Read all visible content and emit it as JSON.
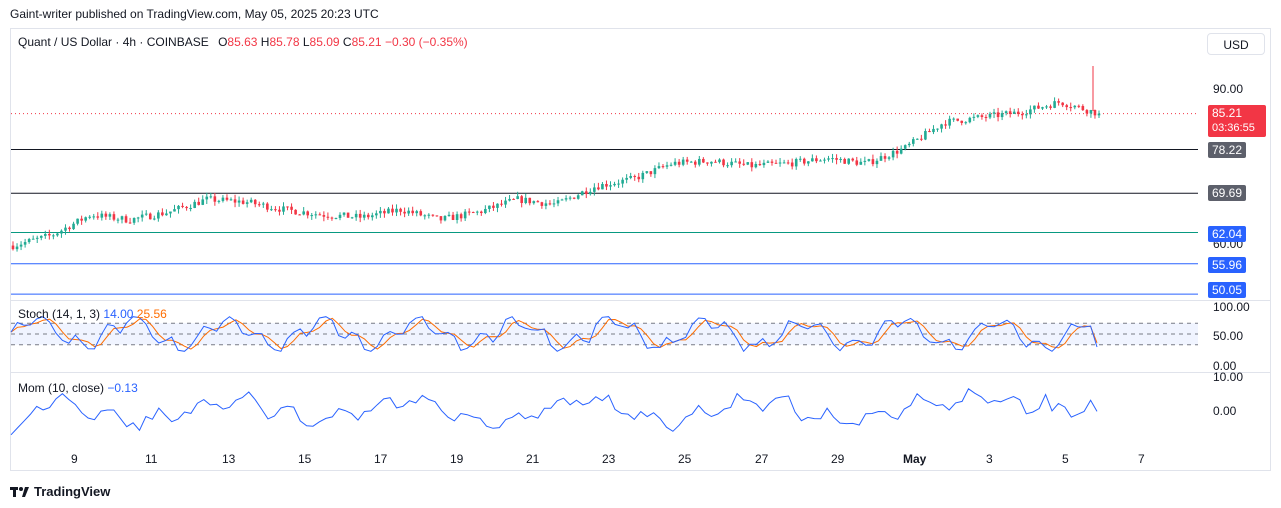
{
  "publisher_line": "Gaint-writer published on TradingView.com, May 05, 2025 20:23 UTC",
  "legend": {
    "symbol": "Quant / US Dollar · 4h · COINBASE",
    "o_label": "O",
    "o": "85.63",
    "h_label": "H",
    "h": "85.78",
    "l_label": "L",
    "l": "85.09",
    "c_label": "C",
    "c": "85.21",
    "change": "−0.30 (−0.35%)"
  },
  "currency_button": "USD",
  "price_axis": {
    "ticks": [
      "90.00",
      "60.00"
    ],
    "current_price": "85.21",
    "countdown": "03:36:55"
  },
  "horizontal_levels": [
    {
      "value": 78.22,
      "label": "78.22",
      "color": "#131722"
    },
    {
      "value": 69.69,
      "label": "69.69",
      "color": "#131722"
    },
    {
      "value": 62.04,
      "label": "62.04",
      "color": "#089981"
    },
    {
      "value": 55.96,
      "label": "55.96",
      "color": "#2962ff"
    },
    {
      "value": 50.05,
      "label": "50.05",
      "color": "#2962ff"
    }
  ],
  "stoch": {
    "name": "Stoch (14, 1, 3)",
    "k": "14.00",
    "d": "25.56",
    "ticks": [
      "100.00",
      "50.00",
      "0.00"
    ],
    "k_color": "#2962ff",
    "d_color": "#ff6d00"
  },
  "mom": {
    "name": "Mom (10, close)",
    "value": "−0.13",
    "ticks": [
      "10.00",
      "0.00"
    ],
    "color": "#2962ff"
  },
  "time_axis": [
    "9",
    "11",
    "13",
    "15",
    "17",
    "19",
    "21",
    "23",
    "25",
    "27",
    "29",
    "May",
    "3",
    "5",
    "7"
  ],
  "branding": "TradingView",
  "colors": {
    "up": "#089981",
    "down": "#f23645",
    "up_candle": "#22ab94"
  },
  "chart_data": {
    "type": "candlestick",
    "title": "Quant / US Dollar · 4h · COINBASE",
    "timeframe": "4h",
    "x_labels": [
      "9",
      "11",
      "13",
      "15",
      "17",
      "19",
      "21",
      "23",
      "25",
      "27",
      "29",
      "May",
      "3",
      "5",
      "7"
    ],
    "close_path_approx": [
      {
        "x": "8",
        "close": 59.5
      },
      {
        "x": "9",
        "close": 61.5
      },
      {
        "x": "10",
        "close": 65.5
      },
      {
        "x": "11",
        "close": 64.5
      },
      {
        "x": "12",
        "close": 66.0
      },
      {
        "x": "13",
        "close": 68.5
      },
      {
        "x": "14",
        "close": 68.0
      },
      {
        "x": "15",
        "close": 66.5
      },
      {
        "x": "16",
        "close": 65.5
      },
      {
        "x": "17",
        "close": 65.0
      },
      {
        "x": "18",
        "close": 66.5
      },
      {
        "x": "19",
        "close": 64.5
      },
      {
        "x": "20",
        "close": 66.0
      },
      {
        "x": "21",
        "close": 68.5
      },
      {
        "x": "22",
        "close": 67.5
      },
      {
        "x": "23",
        "close": 71.0
      },
      {
        "x": "24",
        "close": 72.5
      },
      {
        "x": "25",
        "close": 75.5
      },
      {
        "x": "26",
        "close": 76.0
      },
      {
        "x": "27",
        "close": 75.0
      },
      {
        "x": "28",
        "close": 75.5
      },
      {
        "x": "29",
        "close": 76.5
      },
      {
        "x": "30",
        "close": 75.5
      },
      {
        "x": "May",
        "close": 78.5
      },
      {
        "x": "2",
        "close": 83.5
      },
      {
        "x": "3",
        "close": 84.5
      },
      {
        "x": "4",
        "close": 85.5
      },
      {
        "x": "5",
        "close": 87.5
      },
      {
        "x": "5.8",
        "close": 85.21
      }
    ],
    "ylim": [
      48,
      95
    ],
    "grid": false
  }
}
